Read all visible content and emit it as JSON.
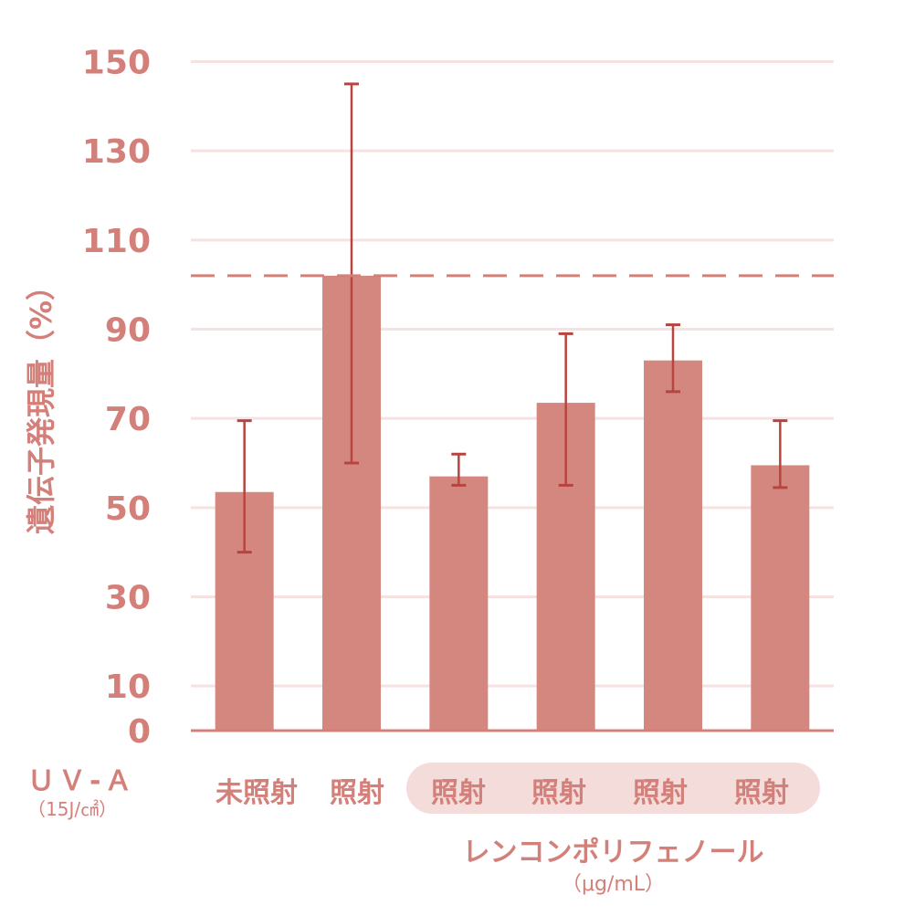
{
  "chart_data": {
    "type": "bar",
    "ylabel": "遺伝子発現量（%）",
    "ylim": [
      0,
      160
    ],
    "yticks": [
      0,
      10,
      30,
      50,
      70,
      90,
      110,
      130,
      150
    ],
    "reference_line": 102,
    "categories": [
      "未照射",
      "照射",
      "照射",
      "照射",
      "照射",
      "照射"
    ],
    "values": [
      53.5,
      102,
      57,
      73.5,
      83,
      59.5
    ],
    "error_low": [
      40,
      60,
      55,
      55,
      76,
      54.5
    ],
    "error_high": [
      69.5,
      145,
      62,
      89,
      91,
      69.5
    ],
    "bar_color": "#d4877f",
    "error_color": "#b84440",
    "grid_color": "#f6e3e1"
  },
  "xaxis": {
    "uva_label": "ＵＶ-Ａ",
    "uva_dose": "（15J/㎠）",
    "cat_labels": [
      "未照射",
      "照射",
      "照射",
      "照射",
      "照射",
      "照射"
    ],
    "treatment_label": "レンコンポリフェノール",
    "treatment_unit": "（μg/mL）"
  }
}
